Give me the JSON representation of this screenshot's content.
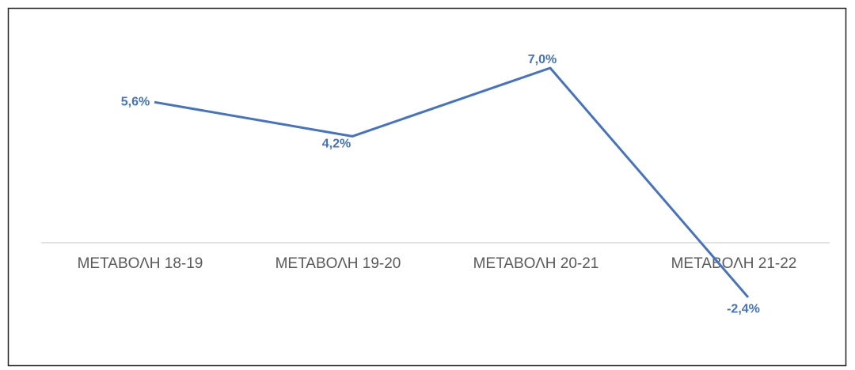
{
  "chart_data": {
    "type": "line",
    "categories": [
      "ΜΕΤΑΒΟΛΗ 18-19",
      "ΜΕΤΑΒΟΛΗ 19-20",
      "ΜΕΤΑΒΟΛΗ 20-21",
      "ΜΕΤΑΒΟΛΗ 21-22"
    ],
    "values": [
      5.6,
      4.2,
      7.0,
      -2.4
    ],
    "value_labels": [
      "5,6%",
      "4,2%",
      "7,0%",
      "-2,4%"
    ],
    "color": "#4472c4"
  }
}
